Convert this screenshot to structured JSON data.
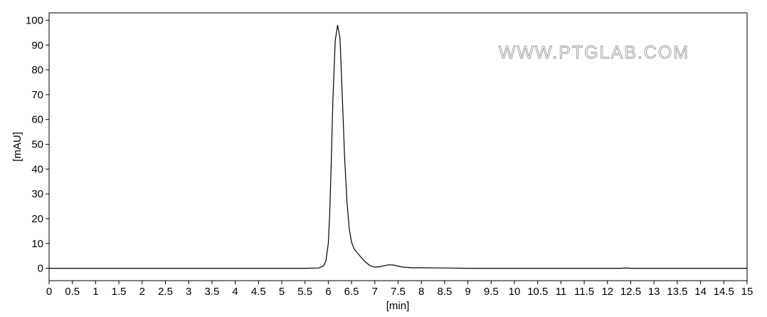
{
  "watermark": "WWW.PTGLAB.COM",
  "chart_data": {
    "type": "line",
    "xlabel": "[min]",
    "ylabel": "[mAU]",
    "xlim": [
      0,
      15
    ],
    "ylim": [
      -5,
      103
    ],
    "x_ticks": [
      0,
      0.5,
      1,
      1.5,
      2,
      2.5,
      3,
      3.5,
      4,
      4.5,
      5,
      5.5,
      6,
      6.5,
      7,
      7.5,
      8,
      8.5,
      9,
      9.5,
      10,
      10.5,
      11,
      11.5,
      12,
      12.5,
      13,
      13.5,
      14,
      14.5,
      15
    ],
    "x_tick_labels": [
      "0",
      "0.5",
      "1",
      "1.5",
      "2",
      "2.5",
      "3",
      "3.5",
      "4",
      "4.5",
      "5",
      "5.5",
      "6",
      "6.5",
      "7",
      "7.5",
      "8",
      "8.5",
      "9",
      "9.5",
      "10",
      "10.5",
      "11",
      "11.5",
      "12",
      "12.5",
      "13",
      "13.5",
      "14",
      "14.5",
      "15"
    ],
    "y_ticks": [
      0,
      10,
      20,
      30,
      40,
      50,
      60,
      70,
      80,
      90,
      100
    ],
    "y_tick_labels": [
      "0",
      "10",
      "20",
      "30",
      "40",
      "50",
      "60",
      "70",
      "80",
      "90",
      "100"
    ],
    "grid": false,
    "line_color": "#000000",
    "series": [
      {
        "x": [
          0,
          5.5,
          5.8,
          5.9,
          5.95,
          6.0,
          6.03,
          6.06,
          6.1,
          6.15,
          6.2,
          6.25,
          6.3,
          6.35,
          6.4,
          6.45,
          6.5,
          6.55,
          6.6,
          6.7,
          6.8,
          6.9,
          7.0,
          7.1,
          7.2,
          7.3,
          7.4,
          7.5,
          7.6,
          7.8,
          8.0,
          8.5,
          9.0,
          10.0,
          11.0,
          12.0,
          12.3,
          12.4,
          12.5,
          13.0,
          14.0,
          15.0
        ],
        "y": [
          0,
          0,
          0.1,
          1.0,
          3.0,
          10.0,
          22.0,
          40.0,
          68.0,
          92.0,
          98.0,
          93.0,
          70.0,
          45.0,
          27.0,
          16.0,
          10.5,
          8.0,
          6.8,
          4.5,
          2.5,
          1.0,
          0.5,
          0.6,
          1.0,
          1.4,
          1.3,
          0.9,
          0.5,
          0.2,
          0.2,
          0.1,
          0.0,
          0.0,
          0.0,
          0.0,
          0.0,
          0.15,
          0.0,
          0.0,
          0.0,
          0.0
        ]
      }
    ]
  }
}
